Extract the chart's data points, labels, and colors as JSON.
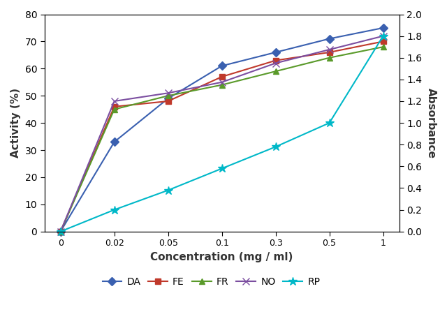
{
  "x_labels": [
    "0",
    "0.02",
    "0.05",
    "0.1",
    "0.3",
    "0.5",
    "1"
  ],
  "DA": [
    0,
    33,
    49,
    61,
    66,
    71,
    75
  ],
  "FE": [
    0,
    46,
    48,
    57,
    63,
    66,
    70
  ],
  "FR": [
    0,
    45,
    50,
    54,
    59,
    64,
    68
  ],
  "NO": [
    0,
    48,
    51,
    55,
    62,
    67,
    72
  ],
  "RP_abs": [
    0,
    0.2,
    0.38,
    0.58,
    0.78,
    1.0,
    1.8
  ],
  "colors": {
    "DA": "#3a60b0",
    "FE": "#c0392b",
    "FR": "#5a9a2a",
    "NO": "#7b4ea0",
    "RP": "#00b8c8"
  },
  "markers": {
    "DA": "D",
    "FE": "s",
    "FR": "^",
    "NO": "x",
    "RP": "*"
  },
  "marker_sizes": {
    "DA": 6,
    "FE": 6,
    "FR": 6,
    "NO": 7,
    "RP": 9
  },
  "xlabel": "Concentration (mg / ml)",
  "ylabel_left": "Activity (%)",
  "ylabel_right": "Absorbance",
  "ylim_left": [
    0,
    80
  ],
  "ylim_right": [
    0,
    2
  ],
  "yticks_left": [
    0,
    10,
    20,
    30,
    40,
    50,
    60,
    70,
    80
  ],
  "yticks_right": [
    0,
    0.2,
    0.4,
    0.6,
    0.8,
    1.0,
    1.2,
    1.4,
    1.6,
    1.8,
    2.0
  ]
}
